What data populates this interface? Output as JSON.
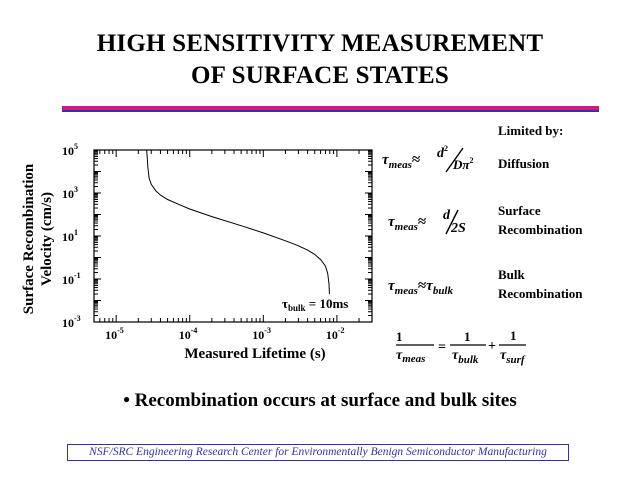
{
  "title": {
    "line1": "HIGH SENSITIVITY MEASUREMENT",
    "line2": "OF SURFACE STATES"
  },
  "chart_data": {
    "type": "line",
    "xscale": "log",
    "yscale": "log",
    "xlim": [
      5e-06,
      0.03
    ],
    "ylim": [
      0.001,
      100000
    ],
    "xlabel": "Measured Lifetime (s)",
    "ylabel": "Surface Recombination Velocity (cm/s)",
    "x_ticks": [
      {
        "value": 1e-05,
        "base": "10",
        "exp": "-5"
      },
      {
        "value": 0.0001,
        "base": "10",
        "exp": "-4"
      },
      {
        "value": 0.001,
        "base": "10",
        "exp": "-3"
      },
      {
        "value": 0.01,
        "base": "10",
        "exp": "-2"
      }
    ],
    "y_ticks": [
      {
        "value": 0.001,
        "base": "10",
        "exp": "-3"
      },
      {
        "value": 0.1,
        "base": "10",
        "exp": "-1"
      },
      {
        "value": 10,
        "base": "10",
        "exp": "1"
      },
      {
        "value": 1000,
        "base": "10",
        "exp": "3"
      },
      {
        "value": 100000,
        "base": "10",
        "exp": "5"
      }
    ],
    "series": [
      {
        "name": "S vs measured lifetime",
        "x": [
          2.6e-05,
          2.7e-05,
          2.8e-05,
          3e-05,
          3.5e-05,
          4e-05,
          5e-05,
          7e-05,
          0.0001,
          0.0002,
          0.0005,
          0.001,
          0.002,
          0.003,
          0.004,
          0.005,
          0.006,
          0.007,
          0.0075,
          0.0078,
          0.0079
        ],
        "y": [
          100000,
          15000,
          5000,
          2500,
          1200,
          800,
          500,
          300,
          180,
          80,
          30,
          14,
          6,
          3.5,
          2.2,
          1.4,
          0.8,
          0.4,
          0.18,
          0.06,
          0.02
        ]
      }
    ],
    "annotation": {
      "tau": "τ",
      "sub": "bulk",
      "rest": " = 10ms"
    }
  },
  "side_panel": {
    "header": "Limited by:",
    "mechanisms": [
      {
        "line1": "Diffusion",
        "line2": ""
      },
      {
        "line1": "Surface",
        "line2": "Recombination"
      },
      {
        "line1": "Bulk",
        "line2": "Recombination"
      }
    ]
  },
  "equations": {
    "tau": "τ",
    "meas": "meas",
    "approx": "≈",
    "d2": "d",
    "two": "2",
    "d_pi2": "Dπ",
    "two_s": "2S",
    "bulk": "bulk",
    "one": "1",
    "equals": "=",
    "plus": "+",
    "surf": "surf"
  },
  "bullet": "• Recombination occurs at surface and bulk sites",
  "footer": "NSF/SRC Engineering Research Center for Environmentally Benign Semiconductor Manufacturing"
}
